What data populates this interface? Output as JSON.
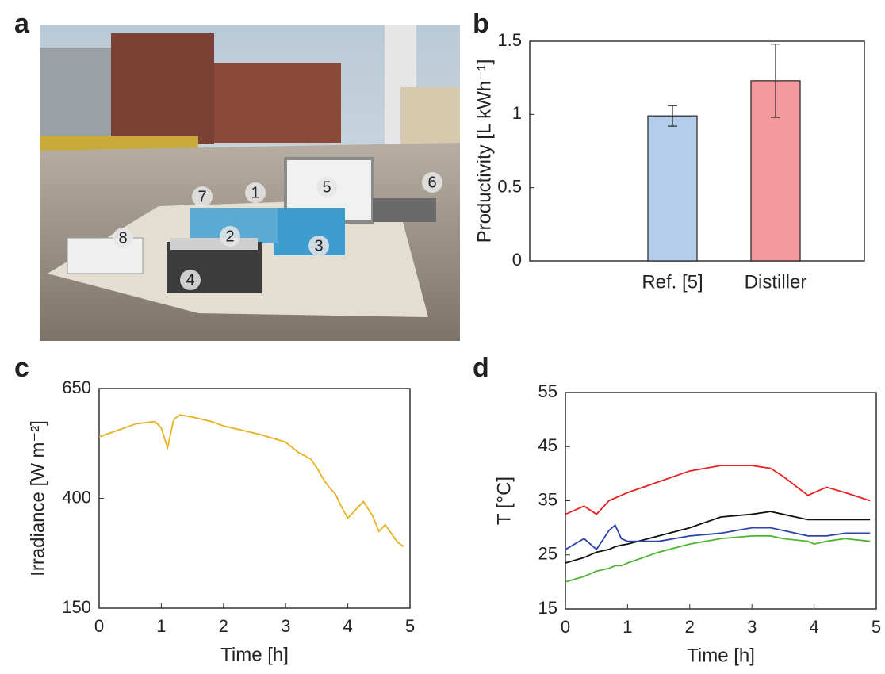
{
  "panels": [
    "a",
    "b",
    "c",
    "d"
  ],
  "photo": {
    "labels": [
      "1",
      "2",
      "3",
      "4",
      "5",
      "6",
      "7",
      "8"
    ]
  },
  "chart_data": [
    {
      "type": "bar",
      "ylabel": "Productivity [L kWh⁻¹]",
      "categories": [
        "Ref. [5]",
        "Distiller"
      ],
      "values": [
        0.99,
        1.23
      ],
      "errors": [
        0.07,
        0.25
      ],
      "colors": [
        "#b4cdea",
        "#f4999c"
      ],
      "ylim": [
        0,
        1.5
      ],
      "yticks": [
        0,
        0.5,
        1,
        1.5
      ]
    },
    {
      "type": "line",
      "xlabel": "Time [h]",
      "ylabel": "Irradiance [W m⁻²]",
      "x": [
        0,
        0.3,
        0.6,
        0.9,
        1,
        1.1,
        1.2,
        1.3,
        1.5,
        1.8,
        2,
        2.3,
        2.6,
        3,
        3.2,
        3.4,
        3.5,
        3.6,
        3.7,
        3.8,
        3.9,
        4,
        4.1,
        4.25,
        4.4,
        4.5,
        4.6,
        4.7,
        4.8,
        4.9
      ],
      "series": [
        {
          "color": "#e8b120",
          "values": [
            540,
            555,
            570,
            575,
            560,
            515,
            580,
            590,
            585,
            575,
            565,
            555,
            545,
            528,
            505,
            490,
            470,
            445,
            425,
            410,
            380,
            355,
            370,
            393,
            360,
            325,
            340,
            320,
            300,
            290
          ]
        }
      ],
      "xlim": [
        0,
        5
      ],
      "xticks": [
        0,
        1,
        2,
        3,
        4,
        5
      ],
      "ylim": [
        150,
        650
      ],
      "yticks": [
        150,
        400,
        650
      ]
    },
    {
      "type": "line",
      "xlabel": "Time [h]",
      "ylabel": "T [°C]",
      "x": [
        0,
        0.3,
        0.5,
        0.7,
        0.8,
        0.9,
        1,
        1.5,
        2,
        2.5,
        3,
        3.3,
        3.5,
        3.9,
        4,
        4.2,
        4.5,
        4.9
      ],
      "series": [
        {
          "color": "#e8201e",
          "values": [
            32.5,
            34,
            32.5,
            35,
            35.5,
            36,
            36.5,
            38.5,
            40.5,
            41.5,
            41.5,
            41,
            39.5,
            36,
            36.5,
            37.5,
            36.5,
            35
          ]
        },
        {
          "color": "#111111",
          "values": [
            23.5,
            24.5,
            25.5,
            26,
            26.5,
            26.8,
            27,
            28.5,
            30,
            32,
            32.5,
            33,
            32.5,
            31.5,
            31.5,
            31.5,
            31.5,
            31.5
          ]
        },
        {
          "color": "#2a45a8",
          "values": [
            26,
            28,
            26,
            29.5,
            30.5,
            28,
            27.5,
            27.5,
            28.5,
            29,
            30,
            30,
            29.5,
            28.5,
            28.5,
            28.5,
            29,
            29
          ]
        },
        {
          "color": "#4cb52e",
          "values": [
            20,
            21,
            22,
            22.5,
            23,
            23,
            23.5,
            25.5,
            27,
            28,
            28.5,
            28.5,
            28,
            27.5,
            27,
            27.5,
            28,
            27.5
          ]
        }
      ],
      "xlim": [
        0,
        5
      ],
      "xticks": [
        0,
        1,
        2,
        3,
        4,
        5
      ],
      "ylim": [
        15,
        55
      ],
      "yticks": [
        15,
        25,
        35,
        45,
        55
      ]
    }
  ]
}
